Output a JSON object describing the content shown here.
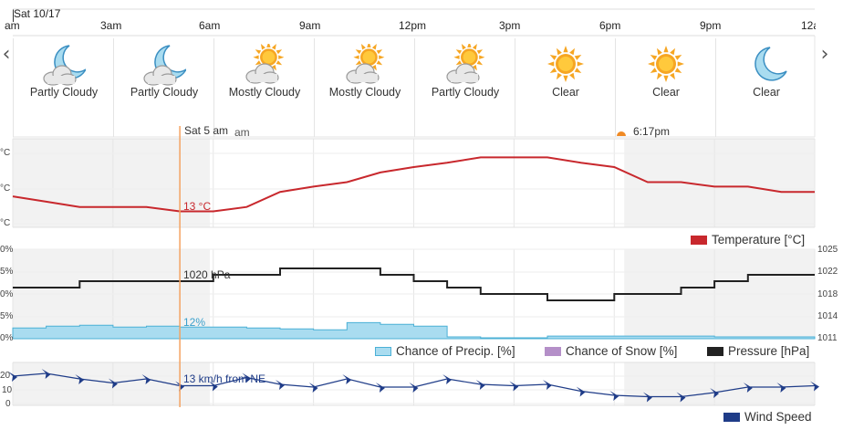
{
  "header": {
    "date_label": "Sat 10/17",
    "hours": [
      "am",
      "3am",
      "6am",
      "9am",
      "12pm",
      "3pm",
      "6pm",
      "9pm",
      "12a"
    ]
  },
  "nav": {
    "prev": "‹",
    "next": "›"
  },
  "conditions": [
    {
      "label": "Partly Cloudy",
      "icon": "moon-cloud-icon"
    },
    {
      "label": "Partly Cloudy",
      "icon": "moon-cloud-icon"
    },
    {
      "label": "Mostly Cloudy",
      "icon": "sun-cloud-icon"
    },
    {
      "label": "Mostly Cloudy",
      "icon": "sun-cloud-icon"
    },
    {
      "label": "Partly Cloudy",
      "icon": "sun-cloud-icon"
    },
    {
      "label": "Clear",
      "icon": "sun-icon"
    },
    {
      "label": "Clear",
      "icon": "sun-icon"
    },
    {
      "label": "Clear",
      "icon": "moon-icon"
    }
  ],
  "cursor": {
    "label": "Sat 5 am",
    "partial_label": "am",
    "temperature_readout": "13 °C",
    "pressure_readout": "1020 hPa",
    "precip_readout": "12%",
    "wind_readout": "13 km/h from NE"
  },
  "sunset": {
    "time": "6:17pm",
    "icon": "sunset-icon"
  },
  "temperature_panel": {
    "left_tick_labels": [
      "°C",
      "°C",
      "°C"
    ],
    "legend": "Temperature [°C]"
  },
  "pressure_panel": {
    "left_tick_labels": [
      "0%",
      "5%",
      "0%",
      "5%",
      "0%"
    ],
    "right_tick_labels": [
      "1025",
      "1022",
      "1018",
      "1014",
      "1011"
    ],
    "legend_precip": "Chance of Precip. [%]",
    "legend_snow": "Chance of Snow [%]",
    "legend_pressure": "Pressure [hPa]"
  },
  "wind_panel": {
    "left_tick_labels": [
      "20",
      "10",
      "0"
    ],
    "legend": "Wind Speed"
  },
  "colors": {
    "temperature": "#c8282d",
    "pressure": "#222222",
    "precip_fill": "#a9dcf0",
    "precip_stroke": "#4bb0d6",
    "snow": "#b48fc8",
    "wind": "#1f3c88",
    "cursor": "#f4a261",
    "night_shade": "#f2f2f2"
  },
  "chart_data": [
    {
      "type": "line",
      "name": "temperature",
      "x": [
        0,
        1,
        2,
        3,
        4,
        5,
        6,
        7,
        8,
        9,
        10,
        11,
        12,
        13,
        14,
        15,
        16,
        17,
        18,
        19,
        20,
        21,
        22,
        23,
        24
      ],
      "values": [
        14.5,
        13.9,
        13.3,
        13.3,
        13.3,
        12.8,
        12.8,
        13.3,
        15.0,
        15.6,
        16.1,
        17.2,
        17.8,
        18.3,
        18.9,
        18.9,
        18.9,
        18.3,
        17.8,
        16.1,
        16.1,
        15.6,
        15.6,
        15.0,
        15.0
      ]
    },
    {
      "type": "line",
      "name": "pressure",
      "x": [
        0,
        1,
        2,
        3,
        4,
        5,
        6,
        7,
        8,
        9,
        10,
        11,
        12,
        13,
        14,
        15,
        16,
        17,
        18,
        19,
        20,
        21,
        22,
        23,
        24
      ],
      "values": [
        1019,
        1019,
        1020,
        1020,
        1020,
        1020,
        1021,
        1021,
        1022,
        1022,
        1022,
        1021,
        1020,
        1019,
        1018,
        1018,
        1017,
        1017,
        1018,
        1018,
        1019,
        1020,
        1021,
        1021,
        1021
      ]
    },
    {
      "type": "area",
      "name": "chance_of_precip",
      "x": [
        0,
        1,
        2,
        3,
        4,
        5,
        6,
        7,
        8,
        9,
        10,
        11,
        12,
        13,
        14,
        15,
        16,
        17,
        18,
        19,
        20,
        21,
        22,
        23,
        24
      ],
      "values": [
        12,
        14,
        15,
        13,
        14,
        13,
        13,
        12,
        11,
        10,
        18,
        16,
        14,
        2,
        1,
        1,
        3,
        3,
        3,
        3,
        3,
        2,
        2,
        2,
        2
      ]
    },
    {
      "type": "line",
      "name": "wind_speed",
      "x": [
        0,
        1,
        2,
        3,
        4,
        5,
        6,
        7,
        8,
        9,
        10,
        11,
        12,
        13,
        14,
        15,
        16,
        17,
        18,
        19,
        20,
        21,
        22,
        23,
        24
      ],
      "values": [
        20,
        22,
        18,
        15,
        18,
        13,
        13,
        19,
        14,
        12,
        18,
        12,
        12,
        18,
        14,
        13,
        14,
        9,
        6,
        5,
        5,
        8,
        12,
        12,
        13
      ]
    }
  ]
}
